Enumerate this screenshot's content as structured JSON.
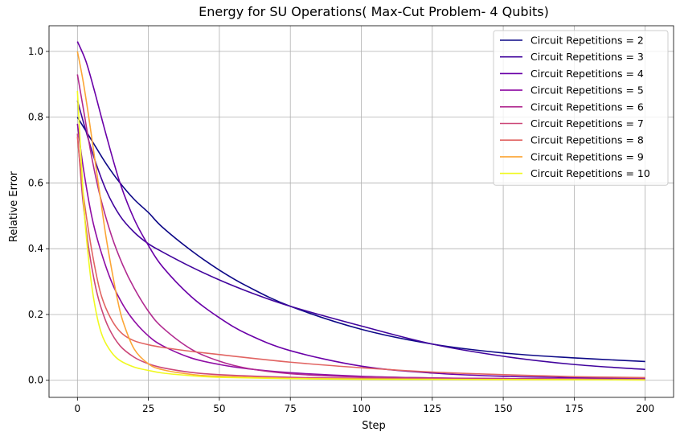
{
  "chart_data": {
    "type": "line",
    "title": "Energy for SU Operations( Max-Cut Problem- 4 Qubits)",
    "xlabel": "Step",
    "ylabel": "Relative Error",
    "xlim": [
      -10,
      210
    ],
    "ylim": [
      -0.052,
      1.078
    ],
    "xticks": [
      0,
      25,
      50,
      75,
      100,
      125,
      150,
      175,
      200
    ],
    "xtick_labels": [
      "0",
      "25",
      "50",
      "75",
      "100",
      "125",
      "150",
      "175",
      "200"
    ],
    "yticks": [
      0.0,
      0.2,
      0.4,
      0.6,
      0.8,
      1.0
    ],
    "ytick_labels": [
      "0.0",
      "0.2",
      "0.4",
      "0.6",
      "0.8",
      "1.0"
    ],
    "grid": true,
    "legend_position": "top-right",
    "series": [
      {
        "name": "Circuit Repetitions = 2",
        "color": "#0d0887",
        "x": [
          0,
          5,
          10,
          15,
          20,
          25,
          30,
          40,
          50,
          60,
          75,
          100,
          125,
          150,
          175,
          200
        ],
        "values": [
          0.8,
          0.73,
          0.66,
          0.6,
          0.55,
          0.51,
          0.465,
          0.395,
          0.335,
          0.285,
          0.225,
          0.155,
          0.11,
          0.083,
          0.068,
          0.057
        ]
      },
      {
        "name": "Circuit Repetitions = 3",
        "color": "#41049d",
        "x": [
          0,
          5,
          10,
          15,
          20,
          25,
          30,
          40,
          50,
          60,
          75,
          100,
          125,
          150,
          175,
          200
        ],
        "values": [
          0.85,
          0.7,
          0.58,
          0.5,
          0.45,
          0.415,
          0.39,
          0.345,
          0.305,
          0.27,
          0.225,
          0.165,
          0.11,
          0.073,
          0.048,
          0.033
        ]
      },
      {
        "name": "Circuit Repetitions = 4",
        "color": "#6a00a8",
        "x": [
          0,
          3,
          6,
          10,
          15,
          20,
          25,
          30,
          40,
          50,
          60,
          75,
          100,
          125,
          150,
          175,
          200
        ],
        "values": [
          1.03,
          0.97,
          0.88,
          0.75,
          0.6,
          0.49,
          0.41,
          0.345,
          0.255,
          0.19,
          0.14,
          0.09,
          0.043,
          0.022,
          0.012,
          0.008,
          0.006
        ]
      },
      {
        "name": "Circuit Repetitions = 5",
        "color": "#8f0da4",
        "x": [
          0,
          2,
          5,
          8,
          12,
          16,
          20,
          25,
          30,
          40,
          50,
          60,
          75,
          100,
          125,
          150,
          200
        ],
        "values": [
          0.78,
          0.65,
          0.5,
          0.4,
          0.3,
          0.23,
          0.18,
          0.135,
          0.105,
          0.068,
          0.048,
          0.035,
          0.023,
          0.012,
          0.007,
          0.005,
          0.003
        ]
      },
      {
        "name": "Circuit Repetitions = 6",
        "color": "#b12a90",
        "x": [
          0,
          2,
          5,
          8,
          12,
          16,
          20,
          25,
          30,
          40,
          50,
          60,
          75,
          100,
          150,
          200
        ],
        "values": [
          0.93,
          0.83,
          0.68,
          0.56,
          0.44,
          0.35,
          0.28,
          0.21,
          0.16,
          0.095,
          0.058,
          0.036,
          0.02,
          0.01,
          0.005,
          0.003
        ]
      },
      {
        "name": "Circuit Repetitions = 7",
        "color": "#cc4778",
        "x": [
          0,
          1,
          2,
          4,
          6,
          8,
          11,
          15,
          20,
          25,
          30,
          40,
          50,
          75,
          100,
          150,
          200
        ],
        "values": [
          0.75,
          0.64,
          0.54,
          0.4,
          0.3,
          0.23,
          0.16,
          0.105,
          0.07,
          0.05,
          0.038,
          0.024,
          0.017,
          0.009,
          0.006,
          0.004,
          0.003
        ]
      },
      {
        "name": "Circuit Repetitions = 8",
        "color": "#e16462",
        "x": [
          0,
          1,
          2,
          4,
          6,
          8,
          10,
          13,
          16,
          20,
          25,
          30,
          40,
          50,
          75,
          100,
          125,
          150,
          175,
          200
        ],
        "values": [
          0.74,
          0.65,
          0.57,
          0.45,
          0.35,
          0.27,
          0.22,
          0.17,
          0.14,
          0.12,
          0.108,
          0.1,
          0.088,
          0.078,
          0.055,
          0.038,
          0.025,
          0.017,
          0.011,
          0.008
        ]
      },
      {
        "name": "Circuit Repetitions = 9",
        "color": "#fca636",
        "x": [
          0,
          2,
          4,
          6,
          8,
          10,
          12,
          14,
          16,
          20,
          25,
          30,
          40,
          50,
          75,
          100,
          150,
          200
        ],
        "values": [
          1.0,
          0.91,
          0.8,
          0.68,
          0.56,
          0.44,
          0.34,
          0.25,
          0.18,
          0.095,
          0.05,
          0.032,
          0.018,
          0.012,
          0.006,
          0.004,
          0.002,
          0.001
        ]
      },
      {
        "name": "Circuit Repetitions = 10",
        "color": "#f0f921",
        "x": [
          0,
          1,
          2,
          3,
          5,
          7,
          9,
          12,
          15,
          20,
          25,
          30,
          40,
          50,
          75,
          100,
          150,
          200
        ],
        "values": [
          0.88,
          0.72,
          0.57,
          0.45,
          0.29,
          0.19,
          0.13,
          0.085,
          0.06,
          0.04,
          0.03,
          0.022,
          0.014,
          0.009,
          0.005,
          0.003,
          0.002,
          0.001
        ]
      }
    ]
  }
}
